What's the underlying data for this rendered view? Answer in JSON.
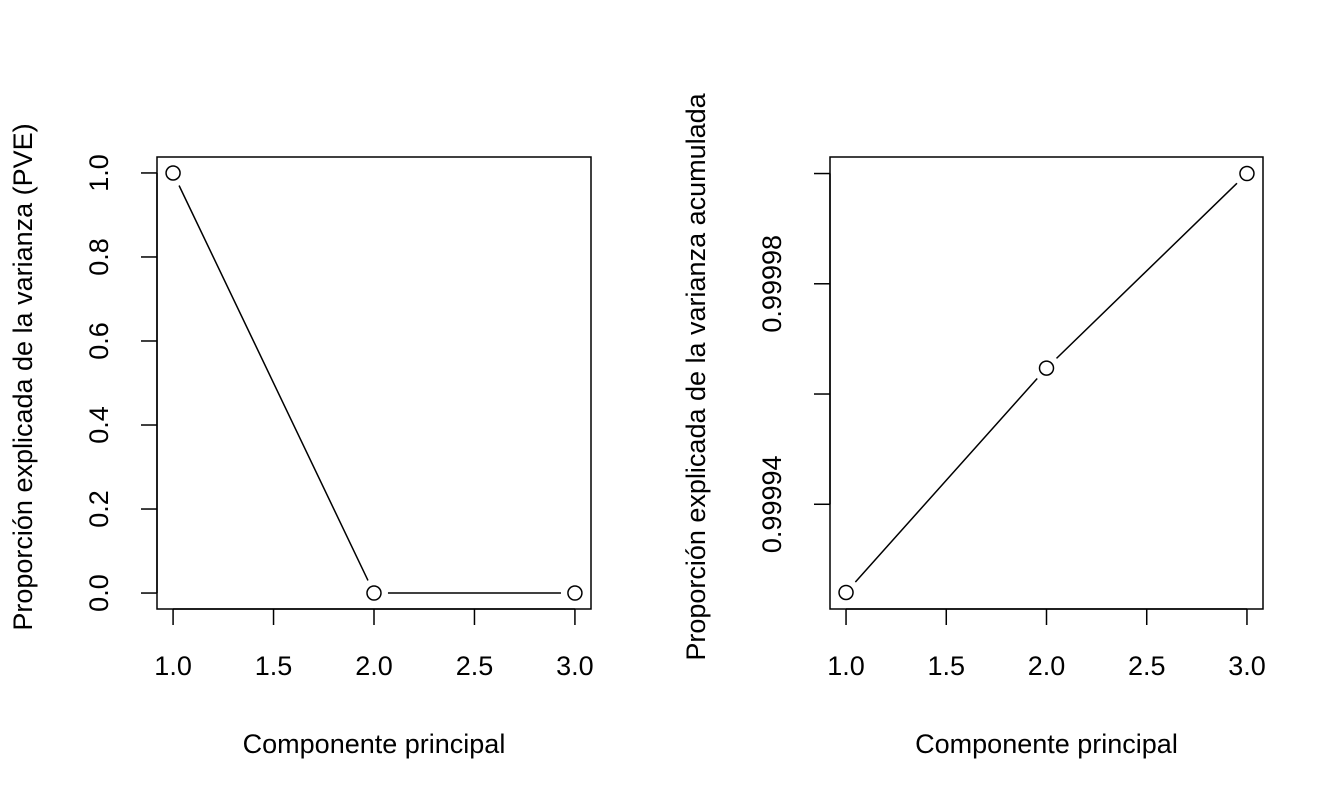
{
  "chart_data": [
    {
      "type": "line",
      "xlabel": "Componente principal",
      "ylabel": "Proporción explicada de la varianza (PVE)",
      "x": [
        1,
        2,
        3
      ],
      "values": [
        0.999924,
        4.07e-05,
        3.53e-05
      ],
      "color": "#000000",
      "xlim": [
        0.92,
        3.08
      ],
      "ylim": [
        -0.038,
        1.038
      ],
      "xticks": [
        {
          "value": 1,
          "label": "1.0"
        },
        1.5,
        {
          "value": 2,
          "label": "2.0"
        },
        2.5,
        {
          "value": 3,
          "label": "3.0"
        }
      ],
      "yticks": [
        {
          "value": 0,
          "label": "0.0"
        },
        0.2,
        0.4,
        0.6,
        0.8,
        {
          "value": 1,
          "label": "1.0"
        }
      ]
    },
    {
      "type": "line",
      "xlabel": "Componente principal",
      "ylabel": "Proporción explicada de la varianza acumulada",
      "x": [
        1,
        2,
        3
      ],
      "values": [
        0.999924,
        0.9999647,
        1.0
      ],
      "color": "#000000",
      "xlim": [
        0.92,
        3.08
      ],
      "ylim": [
        0.999921,
        1.000003
      ],
      "xticks": [
        {
          "value": 1,
          "label": "1.0"
        },
        1.5,
        {
          "value": 2,
          "label": "2.0"
        },
        2.5,
        {
          "value": 3,
          "label": "3.0"
        }
      ],
      "yticks": [
        0.99994,
        {
          "value": 0.99996,
          "label": null
        },
        0.99998,
        {
          "value": 1.0,
          "label": null
        }
      ]
    }
  ]
}
